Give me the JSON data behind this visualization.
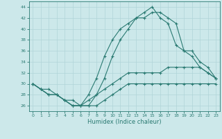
{
  "xlabel": "Humidex (Indice chaleur)",
  "x": [
    0,
    1,
    2,
    3,
    4,
    5,
    6,
    7,
    8,
    9,
    10,
    11,
    12,
    13,
    14,
    15,
    16,
    17,
    18,
    19,
    20,
    21,
    22,
    23
  ],
  "line1": [
    30,
    29,
    28,
    28,
    27,
    26,
    26,
    26,
    26,
    27,
    28,
    29,
    30,
    30,
    30,
    30,
    30,
    30,
    30,
    30,
    30,
    30,
    30,
    30
  ],
  "line2": [
    30,
    29,
    28,
    28,
    27,
    26,
    26,
    27,
    28,
    29,
    30,
    31,
    32,
    32,
    32,
    32,
    32,
    33,
    33,
    33,
    33,
    33,
    32,
    31
  ],
  "line3": [
    30,
    29,
    29,
    28,
    27,
    27,
    26,
    26,
    28,
    31,
    35,
    38,
    40,
    42,
    42,
    43,
    43,
    42,
    41,
    36,
    36,
    34,
    33,
    31
  ],
  "line4": [
    30,
    29,
    28,
    28,
    27,
    26,
    26,
    28,
    31,
    35,
    38,
    40,
    41,
    42,
    43,
    44,
    42,
    41,
    37,
    36,
    35,
    33,
    32,
    31
  ],
  "bg_color": "#cce8ea",
  "grid_color": "#b0d4d8",
  "line_color": "#2a7a72",
  "ylim": [
    25,
    45
  ],
  "xlim": [
    -0.5,
    23.5
  ],
  "yticks": [
    26,
    28,
    30,
    32,
    34,
    36,
    38,
    40,
    42,
    44
  ],
  "xticks": [
    0,
    1,
    2,
    3,
    4,
    5,
    6,
    7,
    8,
    9,
    10,
    11,
    12,
    13,
    14,
    15,
    16,
    17,
    18,
    19,
    20,
    21,
    22,
    23
  ]
}
